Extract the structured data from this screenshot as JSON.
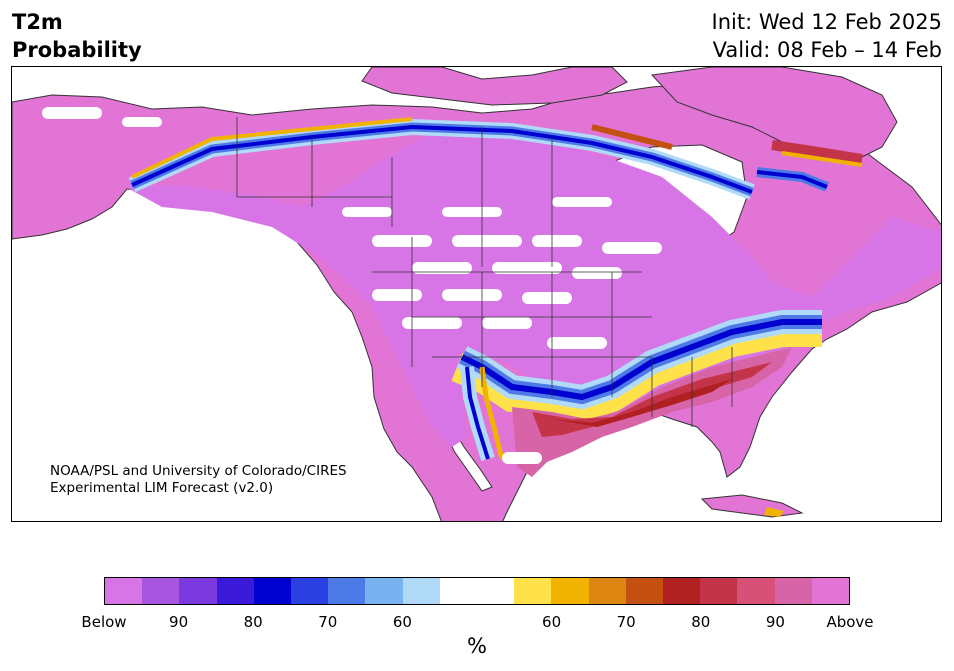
{
  "header": {
    "variable": "T2m",
    "product": "Probability",
    "init": "Init: Wed 12 Feb 2025",
    "valid": "Valid: 08 Feb – 14 Feb"
  },
  "credit": {
    "line1": "NOAA/PSL and University of Colorado/CIRES",
    "line2": "Experimental LIM Forecast (v2.0)"
  },
  "colorbar": {
    "colors": [
      "#d774e6",
      "#a856e0",
      "#7a3ae0",
      "#3a1ad8",
      "#0000d0",
      "#2a3fe0",
      "#4e7ae8",
      "#78b2f0",
      "#b0daf8",
      "#ffffff",
      "#ffffff",
      "#ffe24a",
      "#f2b300",
      "#dc8510",
      "#c45012",
      "#b02020",
      "#c43448",
      "#d65078",
      "#d864a8",
      "#e274d6"
    ],
    "ticks": [
      "Below",
      "90",
      "80",
      "70",
      "60",
      "60",
      "70",
      "80",
      "90",
      "Above"
    ],
    "unit": "%"
  },
  "legend_palette": {
    "above": "#e274d6",
    "below": "#d774e6",
    "cold_core": "#0000d0",
    "warm_core": "#c45012",
    "coast": "#333333"
  }
}
